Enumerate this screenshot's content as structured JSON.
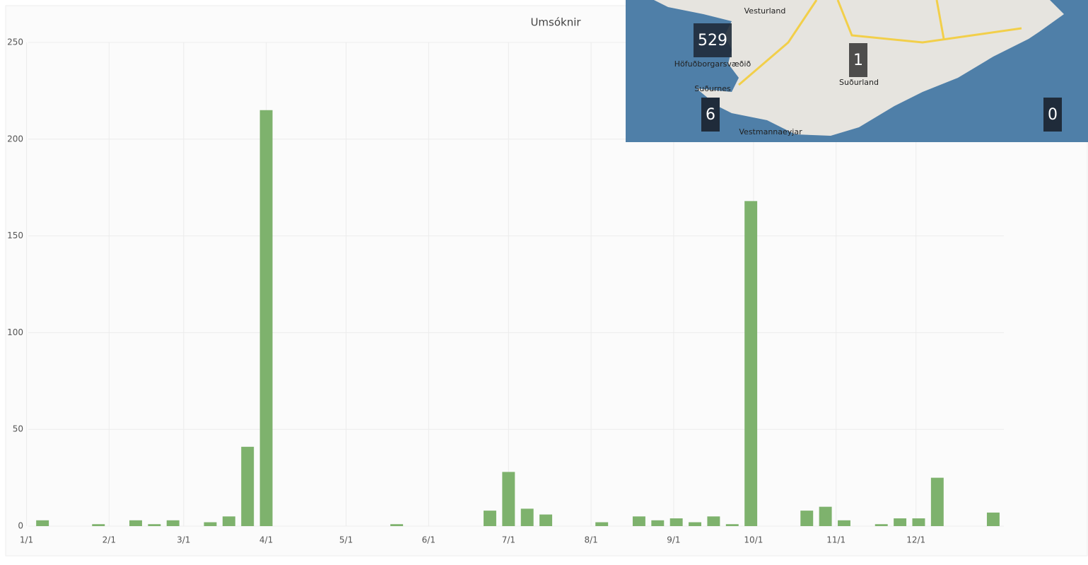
{
  "chart_data": {
    "type": "bar",
    "title": "Umsóknir",
    "color": "#7eb26d",
    "x": [
      6,
      27,
      41,
      48,
      55,
      69,
      76,
      83,
      90,
      139,
      174,
      181,
      188,
      195,
      216,
      230,
      237,
      244,
      251,
      258,
      265,
      272,
      293,
      300,
      307,
      321,
      328,
      335,
      342,
      363
    ],
    "values": [
      3,
      1,
      3,
      1,
      3,
      2,
      5,
      41,
      215,
      1,
      8,
      28,
      9,
      6,
      2,
      5,
      3,
      4,
      2,
      5,
      1,
      168,
      8,
      10,
      3,
      1,
      4,
      4,
      25,
      7
    ],
    "xlim": [
      -2,
      367
    ],
    "xticks": [
      {
        "value": 0,
        "label": "1/1"
      },
      {
        "value": 31,
        "label": "2/1"
      },
      {
        "value": 59,
        "label": "3/1"
      },
      {
        "value": 90,
        "label": "4/1"
      },
      {
        "value": 120,
        "label": "5/1"
      },
      {
        "value": 151,
        "label": "6/1"
      },
      {
        "value": 181,
        "label": "7/1"
      },
      {
        "value": 212,
        "label": "8/1"
      },
      {
        "value": 243,
        "label": "9/1"
      },
      {
        "value": 273,
        "label": "10/1"
      },
      {
        "value": 304,
        "label": "11/1"
      },
      {
        "value": 334,
        "label": "12/1"
      }
    ],
    "ylim": [
      0,
      250
    ],
    "yticks": [
      0,
      50,
      100,
      150,
      200,
      250
    ],
    "grid": true
  },
  "map": {
    "regions": [
      {
        "name": "Vesturland"
      },
      {
        "name": "Höfuðborgarsvæðið",
        "count": "529"
      },
      {
        "name": "Suðurland",
        "count": "1"
      },
      {
        "name": "Suðurnes",
        "count": "6"
      },
      {
        "name": "Vestmannaeyjar"
      },
      {
        "count": "0"
      }
    ]
  }
}
